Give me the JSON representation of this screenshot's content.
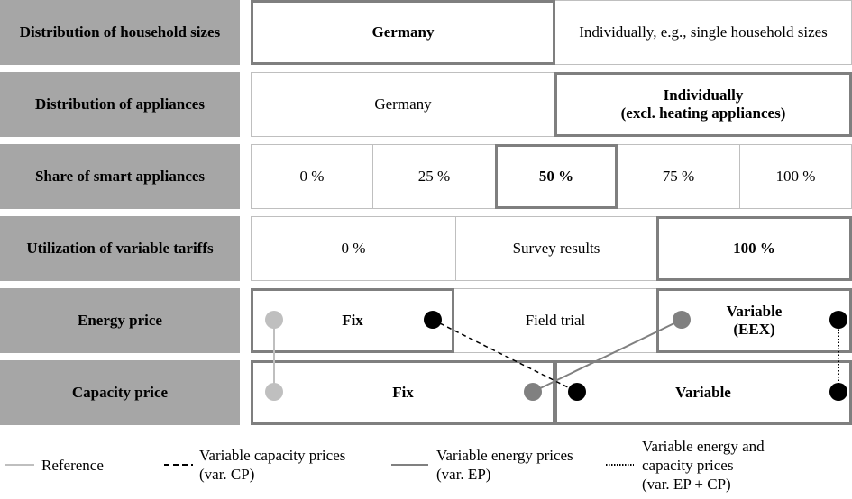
{
  "rows": [
    {
      "label": "Distribution of household sizes",
      "options": [
        {
          "text": "Germany",
          "selected": true
        },
        {
          "text": "Individually, e.g., single household sizes",
          "selected": false
        }
      ]
    },
    {
      "label": "Distribution of appliances",
      "options": [
        {
          "text": "Germany",
          "selected": false
        },
        {
          "lines": [
            "Individually",
            "(excl. heating appliances)"
          ],
          "selected": true
        }
      ]
    },
    {
      "label": "Share of smart appliances",
      "options": [
        {
          "text": "0 %",
          "selected": false
        },
        {
          "text": "25 %",
          "selected": false
        },
        {
          "text": "50 %",
          "selected": true
        },
        {
          "text": "75 %",
          "selected": false
        },
        {
          "text": "100 %",
          "selected": false
        }
      ]
    },
    {
      "label": "Utilization of variable tariffs",
      "options": [
        {
          "text": "0 %",
          "selected": false
        },
        {
          "text": "Survey results",
          "selected": false
        },
        {
          "text": "100 %",
          "selected": true
        }
      ]
    },
    {
      "label": "Energy price",
      "options": [
        {
          "text": "Fix",
          "selected": true
        },
        {
          "text": "Field trial",
          "selected": false
        },
        {
          "lines": [
            "Variable",
            "(EEX)"
          ],
          "selected": true
        }
      ]
    },
    {
      "label": "Capacity price",
      "options": [
        {
          "text": "Fix",
          "selected": true
        },
        {
          "text": "Variable",
          "selected": true
        }
      ]
    }
  ],
  "legend": [
    {
      "lines": [
        "Reference"
      ]
    },
    {
      "lines": [
        "Variable capacity prices",
        "(var. CP)"
      ]
    },
    {
      "lines": [
        "Variable energy prices",
        "(var. EP)"
      ]
    },
    {
      "lines": [
        "Variable energy and",
        "capacity prices",
        "(var. EP + CP)"
      ]
    }
  ]
}
